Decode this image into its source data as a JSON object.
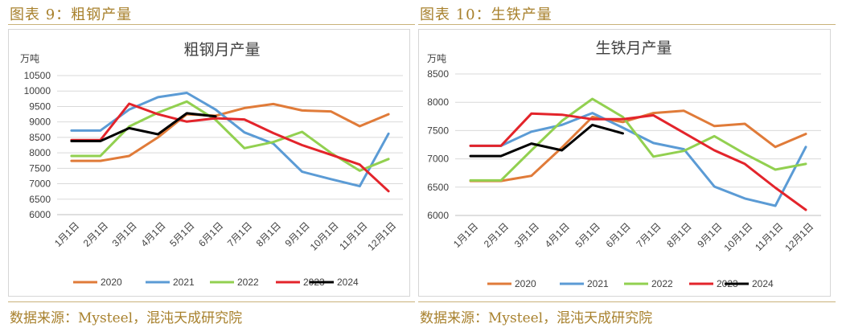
{
  "figures": [
    {
      "caption": "图表 9：粗钢产量",
      "source": "数据来源：Mysteel，混沌天成研究院"
    },
    {
      "caption": "图表 10：生铁产量",
      "source": "数据来源：Mysteel，混沌天成研究院"
    }
  ],
  "colors": {
    "caption": "#a8812d",
    "2020": "#e07b39",
    "2021": "#5b9bd5",
    "2022": "#92d050",
    "2023": "#e3242b",
    "2024": "#000000"
  },
  "chart_data": [
    {
      "type": "line",
      "title": "粗钢月产量",
      "ylabel": "万吨",
      "ylim": [
        6000,
        10500
      ],
      "yticks": [
        6000,
        6500,
        7000,
        7500,
        8000,
        8500,
        9000,
        9500,
        10000,
        10500
      ],
      "grid": true,
      "legend": "bottom",
      "categories": [
        "1月1日",
        "2月1日",
        "3月1日",
        "4月1日",
        "5月1日",
        "6月1日",
        "7月1日",
        "8月1日",
        "9月1日",
        "10月1日",
        "11月1日",
        "12月1日"
      ],
      "series": [
        {
          "name": "2020",
          "values": [
            7740,
            7740,
            7900,
            8500,
            9250,
            9200,
            9450,
            9580,
            9370,
            9340,
            8860,
            9250
          ]
        },
        {
          "name": "2021",
          "values": [
            8720,
            8720,
            9400,
            9800,
            9940,
            9400,
            8660,
            8300,
            7390,
            7150,
            6920,
            8620
          ]
        },
        {
          "name": "2022",
          "values": [
            7900,
            7900,
            8850,
            9300,
            9660,
            9070,
            8150,
            8350,
            8680,
            8000,
            7420,
            7800
          ]
        },
        {
          "name": "2023",
          "values": [
            8410,
            8410,
            9590,
            9250,
            9010,
            9120,
            9080,
            8640,
            8250,
            7940,
            7620,
            6760
          ]
        },
        {
          "name": "2024",
          "values": [
            8380,
            8380,
            8800,
            8600,
            9280,
            9180,
            null,
            null,
            null,
            null,
            null,
            null
          ]
        }
      ]
    },
    {
      "type": "line",
      "title": "生铁月产量",
      "ylabel": "万吨",
      "ylim": [
        6000,
        8500
      ],
      "yticks": [
        6000,
        6500,
        7000,
        7500,
        8000,
        8500
      ],
      "grid": true,
      "legend": "bottom",
      "categories": [
        "1月1日",
        "2月1日",
        "3月1日",
        "4月1日",
        "5月1日",
        "6月1日",
        "7月1日",
        "8月1日",
        "9月1日",
        "10月1日",
        "11月1日",
        "12月1日"
      ],
      "series": [
        {
          "name": "2020",
          "values": [
            6610,
            6610,
            6700,
            7200,
            7740,
            7650,
            7810,
            7850,
            7580,
            7620,
            7210,
            7440
          ]
        },
        {
          "name": "2021",
          "values": [
            7230,
            7230,
            7480,
            7600,
            7810,
            7550,
            7280,
            7170,
            6510,
            6300,
            6170,
            7210
          ]
        },
        {
          "name": "2022",
          "values": [
            6620,
            6620,
            7150,
            7670,
            8060,
            7740,
            7040,
            7140,
            7400,
            7090,
            6810,
            6910
          ]
        },
        {
          "name": "2023",
          "values": [
            7230,
            7230,
            7800,
            7780,
            7700,
            7700,
            7770,
            7460,
            7150,
            6910,
            6490,
            6100
          ]
        },
        {
          "name": "2024",
          "values": [
            7050,
            7050,
            7270,
            7150,
            7600,
            7450,
            null,
            null,
            null,
            null,
            null,
            null
          ]
        }
      ]
    }
  ]
}
